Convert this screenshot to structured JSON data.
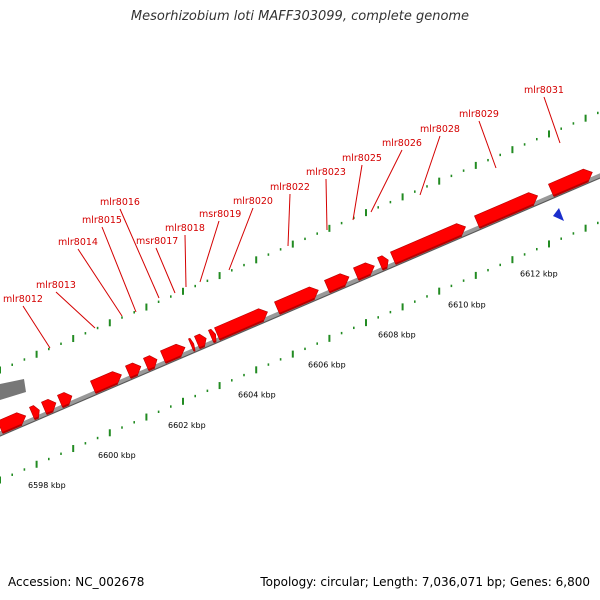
{
  "title": "Mesorhizobium loti MAFF303099, complete genome",
  "footer": {
    "accession": "Accession: NC_002678",
    "summary": "Topology: circular; Length: 7,036,071 bp; Genes: 6,800"
  },
  "colors": {
    "gene": "#ff0000",
    "gene_side": "#b80000",
    "backbone": "#999999",
    "tick": "#228b22",
    "label": "#d40000",
    "marker": "#1a2ecc",
    "off_feature": "#777777"
  },
  "genes": [
    {
      "name": "mlr8012",
      "strand": "+"
    },
    {
      "name": "mlr8013",
      "strand": "+"
    },
    {
      "name": "mlr8014",
      "strand": "+"
    },
    {
      "name": "mlr8015",
      "strand": "+"
    },
    {
      "name": "mlr8016",
      "strand": "+"
    },
    {
      "name": "msr8017",
      "strand": "+"
    },
    {
      "name": "mlr8018",
      "strand": "+"
    },
    {
      "name": "msr8019",
      "strand": "+"
    },
    {
      "name": "mlr8020",
      "strand": "+"
    },
    {
      "name": "mlr8022",
      "strand": "+"
    },
    {
      "name": "mlr8023",
      "strand": "+"
    },
    {
      "name": "mlr8025",
      "strand": "+"
    },
    {
      "name": "mlr8026",
      "strand": "+"
    },
    {
      "name": "mlr8028",
      "strand": "+"
    },
    {
      "name": "mlr8029",
      "strand": "+"
    },
    {
      "name": "mlr8031",
      "strand": "+"
    }
  ],
  "ticks": [
    "6598 kbp",
    "6600 kbp",
    "6602 kbp",
    "6604 kbp",
    "6606 kbp",
    "6608 kbp",
    "6610 kbp",
    "6612 kbp"
  ],
  "marker_icon": "blue-triangle-marker"
}
